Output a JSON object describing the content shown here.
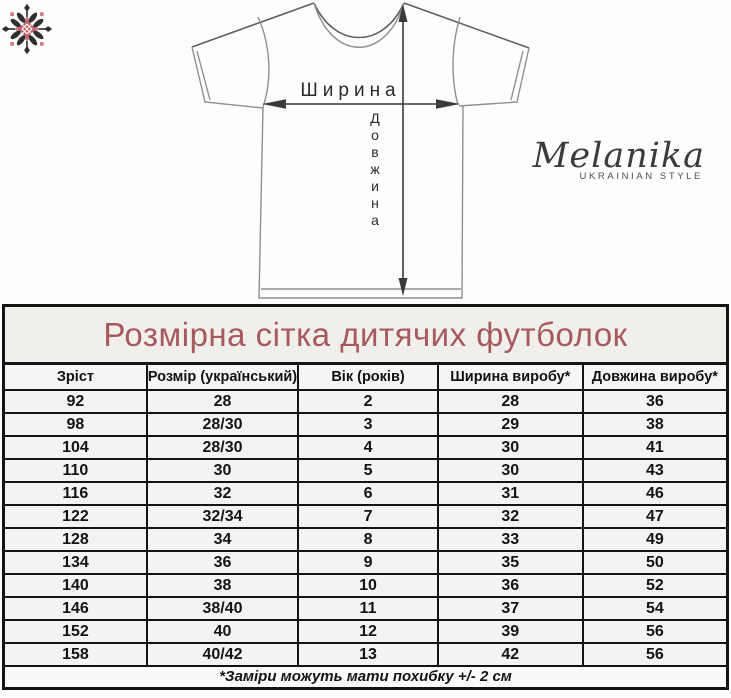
{
  "title": "Розмірна сітка дитячих футболок",
  "diagram": {
    "width_label": "Ширина",
    "length_label": "Довжина"
  },
  "logo": {
    "name": "Melanika",
    "tagline": "UKRAINIAN STYLE"
  },
  "icons": {
    "ornament": "folk-embroidery-snowflake"
  },
  "table": {
    "headers": [
      "Зріст",
      "Розмір (український)",
      "Вік (років)",
      "Ширина виробу*",
      "Довжина виробу*"
    ],
    "rows": [
      [
        "92",
        "28",
        "2",
        "28",
        "36"
      ],
      [
        "98",
        "28/30",
        "3",
        "29",
        "38"
      ],
      [
        "104",
        "28/30",
        "4",
        "30",
        "41"
      ],
      [
        "110",
        "30",
        "5",
        "30",
        "43"
      ],
      [
        "116",
        "32",
        "6",
        "31",
        "46"
      ],
      [
        "122",
        "32/34",
        "7",
        "32",
        "47"
      ],
      [
        "128",
        "34",
        "8",
        "33",
        "49"
      ],
      [
        "134",
        "36",
        "9",
        "35",
        "50"
      ],
      [
        "140",
        "38",
        "10",
        "36",
        "52"
      ],
      [
        "146",
        "38/40",
        "11",
        "37",
        "54"
      ],
      [
        "152",
        "40",
        "12",
        "39",
        "56"
      ],
      [
        "158",
        "40/42",
        "13",
        "42",
        "56"
      ]
    ],
    "footnote": "*Заміри можуть мати похибку +/- 2 см"
  },
  "colors": {
    "title_text": "#a65a5d",
    "title_bg": "#f1efec",
    "cell_bg": "#f5f3f1",
    "border": "#141414",
    "ornament_red": "#c2606b",
    "ornament_black": "#2e2e2e"
  }
}
